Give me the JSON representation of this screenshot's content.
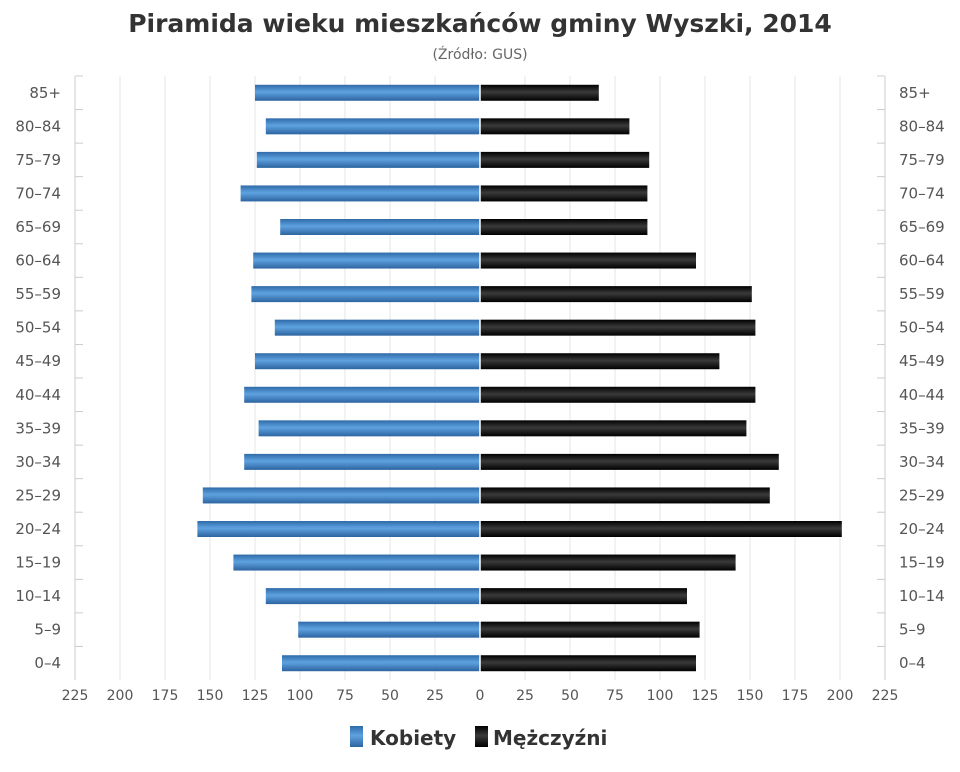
{
  "chart_data": {
    "type": "bar",
    "orientation": "horizontal-population-pyramid",
    "title": "Piramida wieku mieszkańców gminy Wyszki, 2014",
    "subtitle": "(Źródło: GUS)",
    "categories": [
      "85+",
      "80–84",
      "75–79",
      "70–74",
      "65–69",
      "60–64",
      "55–59",
      "50–54",
      "45–49",
      "40–44",
      "35–39",
      "30–34",
      "25–29",
      "20–24",
      "15–19",
      "10–14",
      "5–9",
      "0–4"
    ],
    "series": [
      {
        "name": "Kobiety",
        "side": "left",
        "color": "#3a7fc4",
        "values": [
          125,
          119,
          124,
          133,
          111,
          126,
          127,
          114,
          125,
          131,
          123,
          131,
          154,
          157,
          137,
          119,
          101,
          110
        ]
      },
      {
        "name": "Mężczyźni",
        "side": "right",
        "color": "#111111",
        "values": [
          66,
          83,
          94,
          93,
          93,
          120,
          151,
          153,
          133,
          153,
          148,
          166,
          161,
          201,
          142,
          115,
          122,
          120
        ]
      }
    ],
    "xticks": [
      "225",
      "200",
      "175",
      "150",
      "125",
      "100",
      "75",
      "50",
      "25",
      "0",
      "25",
      "50",
      "75",
      "100",
      "125",
      "150",
      "175",
      "200",
      "225"
    ],
    "xlim": [
      -225,
      225
    ],
    "grid": true,
    "legend_placement": "bottom-center"
  }
}
